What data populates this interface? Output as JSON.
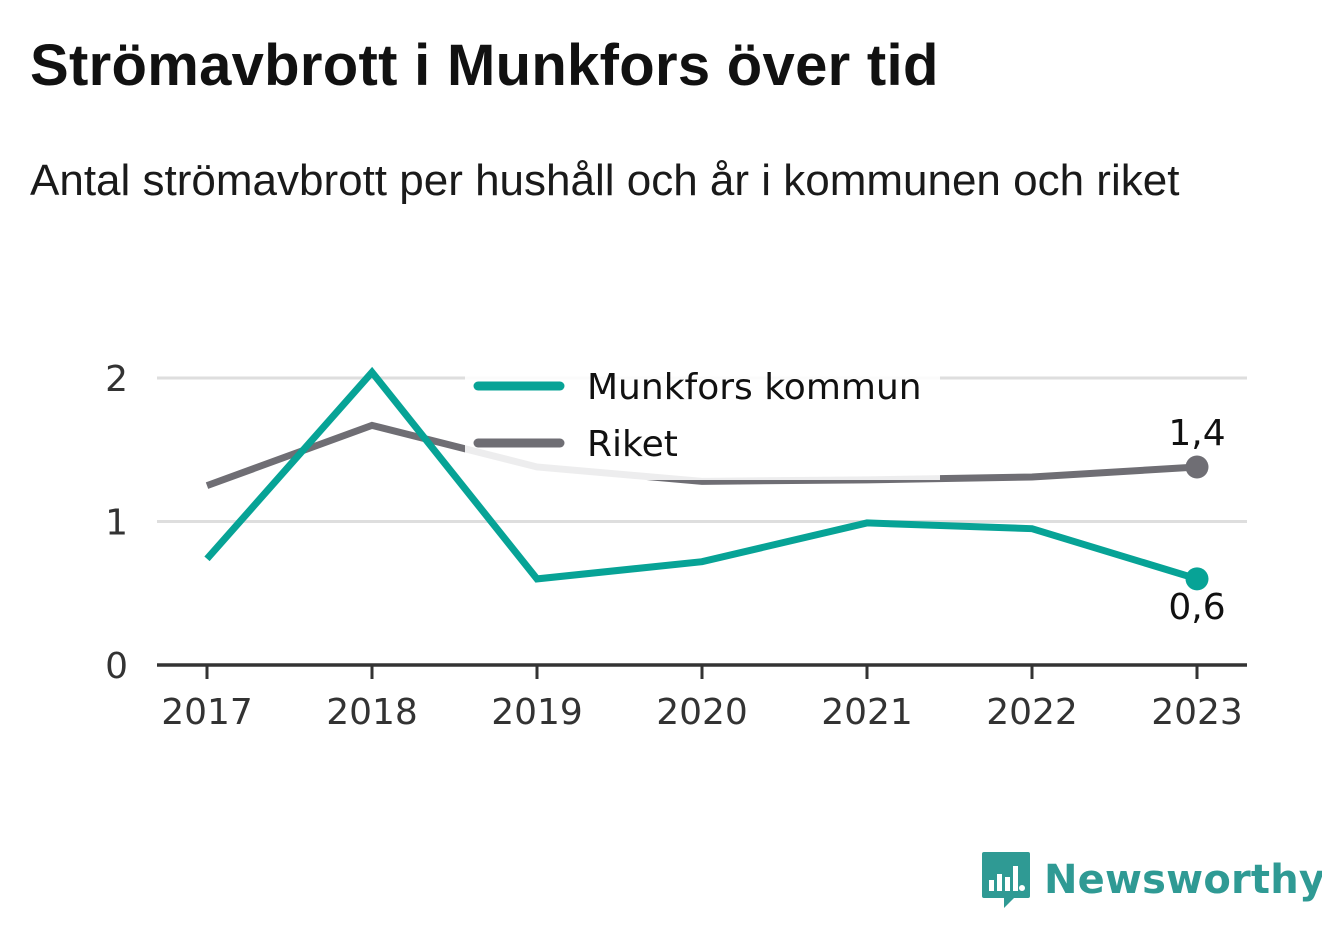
{
  "title": "Strömavbrott i Munkfors över tid",
  "subtitle": "Antal strömavbrott per hushåll och år i kommunen och riket",
  "brand": "Newsworthy",
  "colors": {
    "munkfors": "#07a396",
    "riket": "#6f6e74",
    "grid": "#dedede",
    "axis": "#333333",
    "brand": "#2f9a94"
  },
  "chart_data": {
    "type": "line",
    "categories": [
      "2017",
      "2018",
      "2019",
      "2020",
      "2021",
      "2022",
      "2023"
    ],
    "series": [
      {
        "name": "Munkfors kommun",
        "values": [
          0.74,
          2.04,
          0.6,
          0.72,
          0.99,
          0.95,
          0.6
        ]
      },
      {
        "name": "Riket",
        "values": [
          1.25,
          1.67,
          1.38,
          1.28,
          1.29,
          1.31,
          1.38
        ]
      }
    ],
    "yticks": [
      0,
      1,
      2
    ],
    "ylim": [
      0,
      2
    ],
    "end_labels": {
      "munkfors": "0,6",
      "riket": "1,4"
    },
    "legend": "top-center",
    "grid": true
  }
}
